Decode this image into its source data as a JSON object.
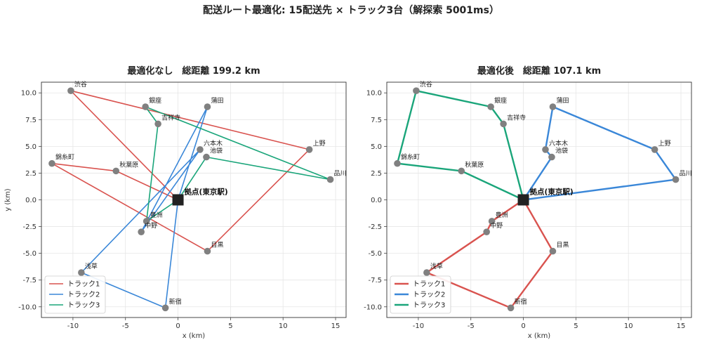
{
  "suptitle": "配送ルート最適化: 15配送先 × トラック3台（解探索 5001ms）",
  "chart_data": [
    {
      "type": "line",
      "title": "最適化なし　総距離 199.2 km",
      "xlabel": "x (km)",
      "ylabel": "y (km)",
      "xlim": [
        -13,
        16
      ],
      "ylim": [
        -11,
        11
      ],
      "xticks": [
        -10,
        -5,
        0,
        5,
        10,
        15
      ],
      "yticks": [
        -10.0,
        -7.5,
        -5.0,
        -2.5,
        0.0,
        2.5,
        5.0,
        7.5,
        10.0
      ],
      "grid": true,
      "legend": "lower-left",
      "depot": {
        "name": "拠点(東京駅)",
        "x": 0,
        "y": 0
      },
      "stops": [
        {
          "name": "渋谷",
          "x": -10.2,
          "y": 10.2
        },
        {
          "name": "銀座",
          "x": -3.1,
          "y": 8.7
        },
        {
          "name": "蒲田",
          "x": 2.8,
          "y": 8.7
        },
        {
          "name": "吉祥寺",
          "x": -1.9,
          "y": 7.1
        },
        {
          "name": "六本木",
          "x": 2.1,
          "y": 4.7
        },
        {
          "name": "池袋",
          "x": 2.7,
          "y": 4.0
        },
        {
          "name": "上野",
          "x": 12.5,
          "y": 4.7
        },
        {
          "name": "錦糸町",
          "x": -12.0,
          "y": 3.4
        },
        {
          "name": "秋葉原",
          "x": -5.9,
          "y": 2.7
        },
        {
          "name": "品川",
          "x": 14.5,
          "y": 1.9
        },
        {
          "name": "豊洲",
          "x": -3.0,
          "y": -2.0
        },
        {
          "name": "中野",
          "x": -3.5,
          "y": -3.0
        },
        {
          "name": "目黒",
          "x": 2.8,
          "y": -4.8
        },
        {
          "name": "浅草",
          "x": -9.2,
          "y": -6.8
        },
        {
          "name": "新宿",
          "x": -1.2,
          "y": -10.1
        }
      ],
      "series": [
        {
          "name": "トラック1",
          "color": "#d9534f",
          "route": [
            "拠点(東京駅)",
            "秋葉原",
            "錦糸町",
            "目黒",
            "上野",
            "渋谷",
            "拠点(東京駅)"
          ]
        },
        {
          "name": "トラック2",
          "color": "#3a87d8",
          "route": [
            "拠点(東京駅)",
            "新宿",
            "浅草",
            "六本木",
            "中野",
            "蒲田",
            "拠点(東京駅)"
          ]
        },
        {
          "name": "トラック3",
          "color": "#1aa57a",
          "route": [
            "拠点(東京駅)",
            "池袋",
            "品川",
            "銀座",
            "吉祥寺",
            "豊洲",
            "拠点(東京駅)"
          ]
        }
      ]
    },
    {
      "type": "line",
      "title": "最適化後　総距離 107.1 km",
      "xlabel": "x (km)",
      "ylabel": "",
      "xlim": [
        -13,
        16
      ],
      "ylim": [
        -11,
        11
      ],
      "xticks": [
        -10,
        -5,
        0,
        5,
        10,
        15
      ],
      "yticks": [
        -10.0,
        -7.5,
        -5.0,
        -2.5,
        0.0,
        2.5,
        5.0,
        7.5,
        10.0
      ],
      "grid": true,
      "legend": "lower-left",
      "depot": {
        "name": "拠点(東京駅)",
        "x": 0,
        "y": 0
      },
      "stops": [
        {
          "name": "渋谷",
          "x": -10.2,
          "y": 10.2
        },
        {
          "name": "銀座",
          "x": -3.1,
          "y": 8.7
        },
        {
          "name": "蒲田",
          "x": 2.8,
          "y": 8.7
        },
        {
          "name": "吉祥寺",
          "x": -1.9,
          "y": 7.1
        },
        {
          "name": "六本木",
          "x": 2.1,
          "y": 4.7
        },
        {
          "name": "池袋",
          "x": 2.7,
          "y": 4.0
        },
        {
          "name": "上野",
          "x": 12.5,
          "y": 4.7
        },
        {
          "name": "錦糸町",
          "x": -12.0,
          "y": 3.4
        },
        {
          "name": "秋葉原",
          "x": -5.9,
          "y": 2.7
        },
        {
          "name": "品川",
          "x": 14.5,
          "y": 1.9
        },
        {
          "name": "豊洲",
          "x": -3.0,
          "y": -2.0
        },
        {
          "name": "中野",
          "x": -3.5,
          "y": -3.0
        },
        {
          "name": "目黒",
          "x": 2.8,
          "y": -4.8
        },
        {
          "name": "浅草",
          "x": -9.2,
          "y": -6.8
        },
        {
          "name": "新宿",
          "x": -1.2,
          "y": -10.1
        }
      ],
      "series": [
        {
          "name": "トラック1",
          "color": "#d9534f",
          "route": [
            "拠点(東京駅)",
            "豊洲",
            "中野",
            "浅草",
            "新宿",
            "目黒",
            "拠点(東京駅)"
          ]
        },
        {
          "name": "トラック2",
          "color": "#3a87d8",
          "route": [
            "拠点(東京駅)",
            "池袋",
            "六本木",
            "蒲田",
            "上野",
            "品川",
            "拠点(東京駅)"
          ]
        },
        {
          "name": "トラック3",
          "color": "#1aa57a",
          "route": [
            "拠点(東京駅)",
            "吉祥寺",
            "銀座",
            "渋谷",
            "錦糸町",
            "秋葉原",
            "拠点(東京駅)"
          ]
        }
      ]
    }
  ]
}
